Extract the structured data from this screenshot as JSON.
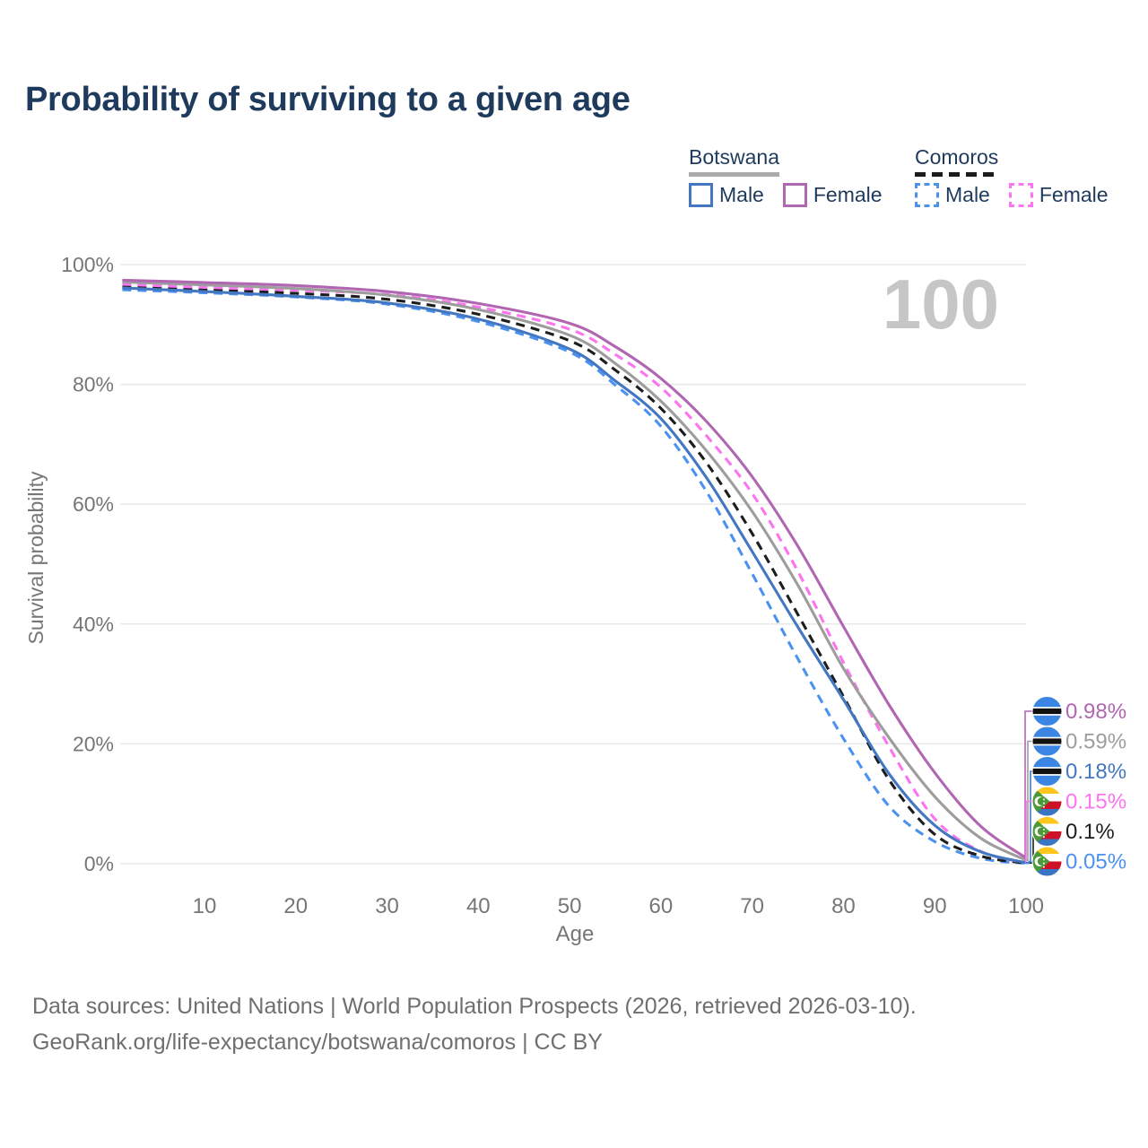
{
  "title": "Probability of surviving to a given age",
  "watermark_age": "100",
  "colors": {
    "title_text": "#1e3a5c",
    "axis_text": "#767676",
    "gridline": "#e9e9e9",
    "watermark": "#c6c6c6",
    "footer_text": "#6f6f6f"
  },
  "legend": {
    "groups": [
      {
        "name": "Botswana",
        "line_style": "solid",
        "underline_color": "#ababab",
        "items": [
          {
            "label": "Male",
            "color": "#4377c2"
          },
          {
            "label": "Female",
            "color": "#b166b1"
          }
        ]
      },
      {
        "name": "Comoros",
        "line_style": "dashed",
        "underline_color": "#1b1b1b",
        "items": [
          {
            "label": "Male",
            "color": "#4b92f0"
          },
          {
            "label": "Female",
            "color": "#fc74ef"
          }
        ]
      }
    ]
  },
  "chart_data": {
    "type": "line",
    "title": "Probability of surviving to a given age",
    "xlabel": "Age",
    "ylabel": "Survival probability",
    "xlim": [
      0,
      100
    ],
    "ylim": [
      0,
      100
    ],
    "grid": "horizontal",
    "legend_position": "top-right",
    "age_marker": "100",
    "xticks": [
      10,
      20,
      30,
      40,
      50,
      60,
      70,
      80,
      90,
      100
    ],
    "yticks": [
      0,
      20,
      40,
      60,
      80,
      100
    ],
    "ytick_suffix": "%",
    "x": [
      1,
      10,
      20,
      30,
      40,
      50,
      55,
      60,
      65,
      70,
      75,
      80,
      85,
      90,
      95,
      100
    ],
    "series": [
      {
        "name": "Botswana Female",
        "country": "Botswana",
        "sex": "Female",
        "color": "#b166b1",
        "dash": false,
        "flag": "botswana",
        "end_label": "0.98%",
        "values": [
          97.4,
          97.0,
          96.5,
          95.5,
          93.5,
          90.2,
          86.3,
          81.0,
          73.8,
          64.6,
          53.0,
          39.6,
          26.5,
          15.2,
          6.3,
          0.98
        ]
      },
      {
        "name": "Botswana Both sexes",
        "country": "Botswana",
        "sex": "Both sexes",
        "color": "#9d9d9d",
        "dash": false,
        "flag": "botswana",
        "end_label": "0.59%",
        "values": [
          97.1,
          96.6,
          96.0,
          94.9,
          92.5,
          88.2,
          83.5,
          77.2,
          68.9,
          58.8,
          46.5,
          32.6,
          21.0,
          11.2,
          4.3,
          0.59
        ]
      },
      {
        "name": "Botswana Male",
        "country": "Botswana",
        "sex": "Male",
        "color": "#4377c2",
        "dash": false,
        "flag": "botswana",
        "end_label": "0.18%",
        "values": [
          96.1,
          95.5,
          94.7,
          93.6,
          90.9,
          85.9,
          80.6,
          74.3,
          64.4,
          52.1,
          39.5,
          27.4,
          15.0,
          6.4,
          2.0,
          0.18
        ]
      },
      {
        "name": "Comoros Female",
        "country": "Comoros",
        "sex": "Female",
        "color": "#fc74ef",
        "dash": true,
        "flag": "comoros",
        "end_label": "0.15%",
        "values": [
          96.7,
          96.2,
          95.7,
          95.0,
          92.9,
          89.2,
          85.0,
          79.5,
          71.4,
          61.8,
          48.8,
          33.6,
          19.5,
          7.5,
          2.1,
          0.15
        ]
      },
      {
        "name": "Comoros Both sexes",
        "country": "Comoros",
        "sex": "Both sexes",
        "color": "#1d1d1d",
        "dash": true,
        "flag": "comoros",
        "end_label": "0.1%",
        "values": [
          96.3,
          95.8,
          95.2,
          94.2,
          91.7,
          87.3,
          82.4,
          76.0,
          66.9,
          55.1,
          41.6,
          27.9,
          14.0,
          4.9,
          1.3,
          0.1
        ]
      },
      {
        "name": "Comoros Male",
        "country": "Comoros",
        "sex": "Male",
        "color": "#4b92f0",
        "dash": true,
        "flag": "comoros",
        "end_label": "0.05%",
        "values": [
          95.8,
          95.3,
          94.6,
          93.4,
          90.5,
          85.4,
          79.9,
          73.0,
          62.1,
          48.4,
          34.2,
          20.9,
          9.6,
          3.7,
          0.9,
          0.05
        ]
      }
    ]
  },
  "footer": {
    "line1": "Data sources: United Nations | World Population Prospects (2026, retrieved 2026-03-10).",
    "line2": "GeoRank.org/life-expectancy/botswana/comoros | CC BY"
  }
}
